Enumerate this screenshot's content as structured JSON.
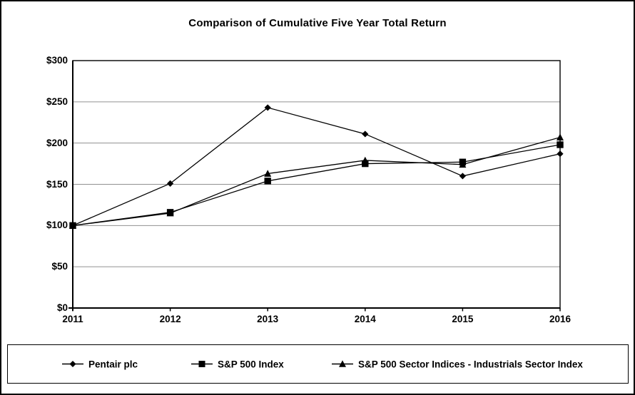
{
  "chart_data": {
    "type": "line",
    "title": "Comparison of Cumulative Five Year Total Return",
    "categories": [
      "2011",
      "2012",
      "2013",
      "2014",
      "2015",
      "2016"
    ],
    "series": [
      {
        "name": "Pentair plc",
        "marker": "diamond",
        "values": [
          100,
          151,
          243,
          211,
          160,
          187
        ]
      },
      {
        "name": "S&P 500 Index",
        "marker": "square",
        "values": [
          100,
          116,
          154,
          175,
          177,
          198
        ]
      },
      {
        "name": "S&P 500 Sector Indices - Industrials Sector Index",
        "marker": "triangle",
        "values": [
          100,
          115,
          163,
          179,
          174,
          207
        ]
      }
    ],
    "xlabel": "",
    "ylabel": "",
    "ylim": [
      0,
      300
    ],
    "ytick_step": 50,
    "ytick_labels": [
      "$0",
      "$50",
      "$100",
      "$150",
      "$200",
      "$250",
      "$300"
    ],
    "grid": "horizontal",
    "legend_position": "bottom",
    "colors": {
      "line": "#000000",
      "marker": "#000000",
      "grid": "#909090",
      "text": "#000000",
      "background": "#ffffff",
      "border": "#000000"
    }
  }
}
